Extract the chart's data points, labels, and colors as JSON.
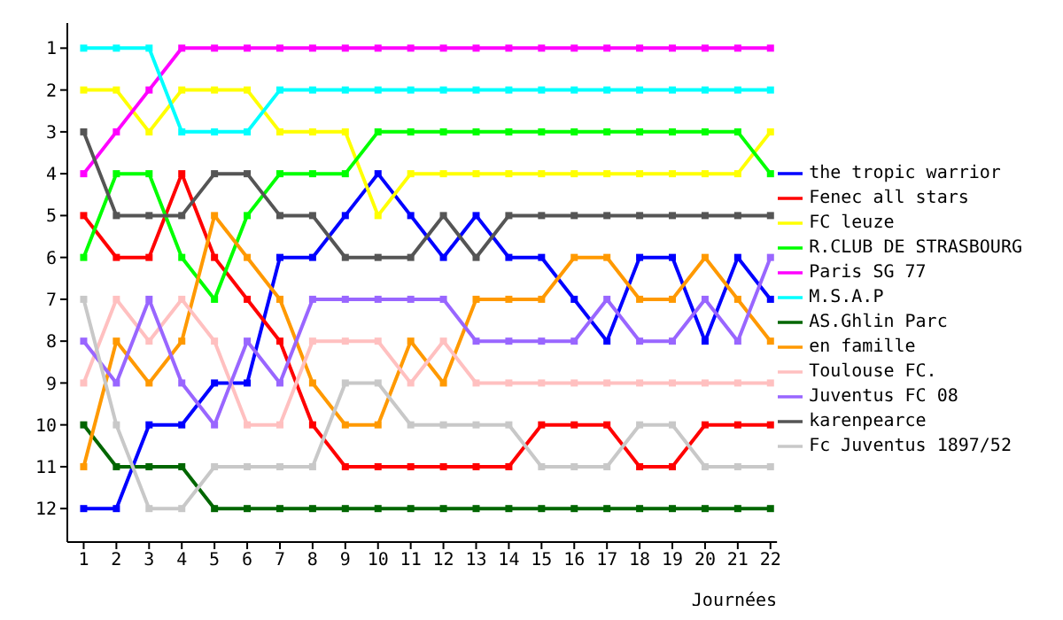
{
  "chart_data": {
    "type": "line",
    "xlabel": "Journées",
    "x": [
      1,
      2,
      3,
      4,
      5,
      6,
      7,
      8,
      9,
      10,
      11,
      12,
      13,
      14,
      15,
      16,
      17,
      18,
      19,
      20,
      21,
      22
    ],
    "xlim": [
      0.5,
      22.2
    ],
    "xticks": [
      1,
      2,
      3,
      4,
      5,
      6,
      7,
      8,
      9,
      10,
      11,
      12,
      13,
      14,
      15,
      16,
      17,
      18,
      19,
      20,
      21,
      22
    ],
    "ylim": [
      12.8,
      0.4
    ],
    "yticks": [
      1,
      2,
      3,
      4,
      5,
      6,
      7,
      8,
      9,
      10,
      11,
      12
    ],
    "grid": false,
    "legend": "right",
    "marker": "square",
    "line_style": "solid",
    "series": [
      {
        "name": "the tropic warrior",
        "color": "#0000ff",
        "values": [
          12,
          12,
          10,
          10,
          9,
          9,
          6,
          6,
          5,
          4,
          5,
          6,
          5,
          6,
          6,
          7,
          8,
          6,
          6,
          8,
          6,
          7
        ]
      },
      {
        "name": "Fenec all stars",
        "color": "#ff0000",
        "values": [
          5,
          6,
          6,
          4,
          6,
          7,
          8,
          10,
          11,
          11,
          11,
          11,
          11,
          11,
          10,
          10,
          10,
          11,
          11,
          10,
          10,
          10
        ]
      },
      {
        "name": "FC leuze",
        "color": "#ffff00",
        "values": [
          2,
          2,
          3,
          2,
          2,
          2,
          3,
          3,
          3,
          5,
          4,
          4,
          4,
          4,
          4,
          4,
          4,
          4,
          4,
          4,
          4,
          3
        ]
      },
      {
        "name": "R.CLUB DE STRASBOURG",
        "color": "#00ff00",
        "values": [
          6,
          4,
          4,
          6,
          7,
          5,
          4,
          4,
          4,
          3,
          3,
          3,
          3,
          3,
          3,
          3,
          3,
          3,
          3,
          3,
          3,
          4
        ]
      },
      {
        "name": "Paris SG 77",
        "color": "#ff00ff",
        "values": [
          4,
          3,
          2,
          1,
          1,
          1,
          1,
          1,
          1,
          1,
          1,
          1,
          1,
          1,
          1,
          1,
          1,
          1,
          1,
          1,
          1,
          1
        ]
      },
      {
        "name": "M.S.A.P",
        "color": "#00ffff",
        "values": [
          1,
          1,
          1,
          3,
          3,
          3,
          2,
          2,
          2,
          2,
          2,
          2,
          2,
          2,
          2,
          2,
          2,
          2,
          2,
          2,
          2,
          2
        ]
      },
      {
        "name": "AS.Ghlin Parc",
        "color": "#006600",
        "values": [
          10,
          11,
          11,
          11,
          12,
          12,
          12,
          12,
          12,
          12,
          12,
          12,
          12,
          12,
          12,
          12,
          12,
          12,
          12,
          12,
          12,
          12
        ]
      },
      {
        "name": "en famille",
        "color": "#ff9900",
        "values": [
          11,
          8,
          9,
          8,
          5,
          6,
          7,
          9,
          10,
          10,
          8,
          9,
          7,
          7,
          7,
          6,
          6,
          7,
          7,
          6,
          7,
          8
        ]
      },
      {
        "name": "Toulouse FC.",
        "color": "#ffc0c0",
        "values": [
          9,
          7,
          8,
          7,
          8,
          10,
          10,
          8,
          8,
          8,
          9,
          8,
          9,
          9,
          9,
          9,
          9,
          9,
          9,
          9,
          9,
          9
        ]
      },
      {
        "name": "Juventus FC 08",
        "color": "#9966ff",
        "values": [
          8,
          9,
          7,
          9,
          10,
          8,
          9,
          7,
          7,
          7,
          7,
          7,
          8,
          8,
          8,
          8,
          7,
          8,
          8,
          7,
          8,
          6
        ]
      },
      {
        "name": "karenpearce",
        "color": "#555555",
        "values": [
          3,
          5,
          5,
          5,
          4,
          4,
          5,
          5,
          6,
          6,
          6,
          5,
          6,
          5,
          5,
          5,
          5,
          5,
          5,
          5,
          5,
          5
        ]
      },
      {
        "name": "Fc Juventus 1897/52",
        "color": "#c8c8c8",
        "values": [
          7,
          10,
          12,
          12,
          11,
          11,
          11,
          11,
          9,
          9,
          10,
          10,
          10,
          10,
          11,
          11,
          11,
          10,
          10,
          11,
          11,
          11
        ]
      }
    ]
  }
}
